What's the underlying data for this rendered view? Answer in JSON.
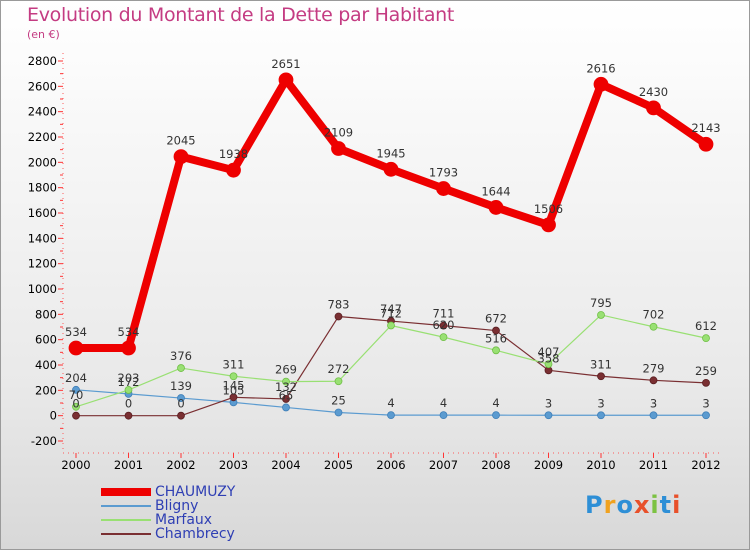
{
  "title": "Evolution du Montant de la Dette par Habitant",
  "subtitle": "(en €)",
  "logo": {
    "text": "Proxiti",
    "letters": [
      "P",
      "r",
      "o",
      "x",
      "i",
      "t",
      "i"
    ],
    "colors": [
      "#2e8fd6",
      "#f0a21f",
      "#2e8fd6",
      "#e8502a",
      "#7cc242",
      "#2e8fd6",
      "#e8502a"
    ]
  },
  "chart_data": {
    "type": "line",
    "categories": [
      "2000",
      "2001",
      "2002",
      "2003",
      "2004",
      "2005",
      "2006",
      "2007",
      "2008",
      "2009",
      "2010",
      "2011",
      "2012"
    ],
    "ylim": [
      -200,
      2800
    ],
    "yticks": [
      "-200",
      "0",
      "200",
      "400",
      "600",
      "800",
      "1000",
      "1200",
      "1400",
      "1600",
      "1800",
      "2000",
      "2200",
      "2400",
      "2600",
      "2800"
    ],
    "grid": false,
    "legend_position": "bottom-left",
    "series": [
      {
        "name": "CHAUMUZY",
        "color": "#ee0000",
        "values": [
          534,
          534,
          2045,
          1938,
          2651,
          2109,
          1945,
          1793,
          1644,
          1506,
          2616,
          2430,
          2143
        ],
        "labels": [
          "534",
          "534",
          "2045",
          "1938",
          "2651",
          "2109",
          "1945",
          "1793",
          "1644",
          "1506",
          "2616",
          "2430",
          "2143"
        ]
      },
      {
        "name": "Bligny",
        "color": "#5b9bd0",
        "values": [
          204,
          172,
          139,
          105,
          65,
          25,
          4,
          4,
          4,
          3,
          3,
          3,
          3
        ],
        "labels": [
          "204",
          "172",
          "139",
          "105",
          "65",
          "25",
          "4",
          "4",
          "4",
          "3",
          "3",
          "3",
          "3"
        ]
      },
      {
        "name": "Marfaux",
        "color": "#99e073",
        "values": [
          70,
          203,
          376,
          311,
          269,
          272,
          712,
          620,
          516,
          407,
          795,
          702,
          612
        ],
        "labels": [
          "70",
          "203",
          "376",
          "311",
          "269",
          "272",
          "712",
          "620",
          "516",
          "407",
          "795",
          "702",
          "612"
        ]
      },
      {
        "name": "Chambrecy",
        "color": "#7a2f32",
        "values": [
          0,
          0,
          0,
          145,
          132,
          783,
          747,
          711,
          672,
          358,
          311,
          279,
          259
        ],
        "labels": [
          "0",
          "0",
          "0",
          "145",
          "132",
          "783",
          "747",
          "711",
          "672",
          "358",
          "311",
          "279",
          "259"
        ]
      }
    ]
  }
}
